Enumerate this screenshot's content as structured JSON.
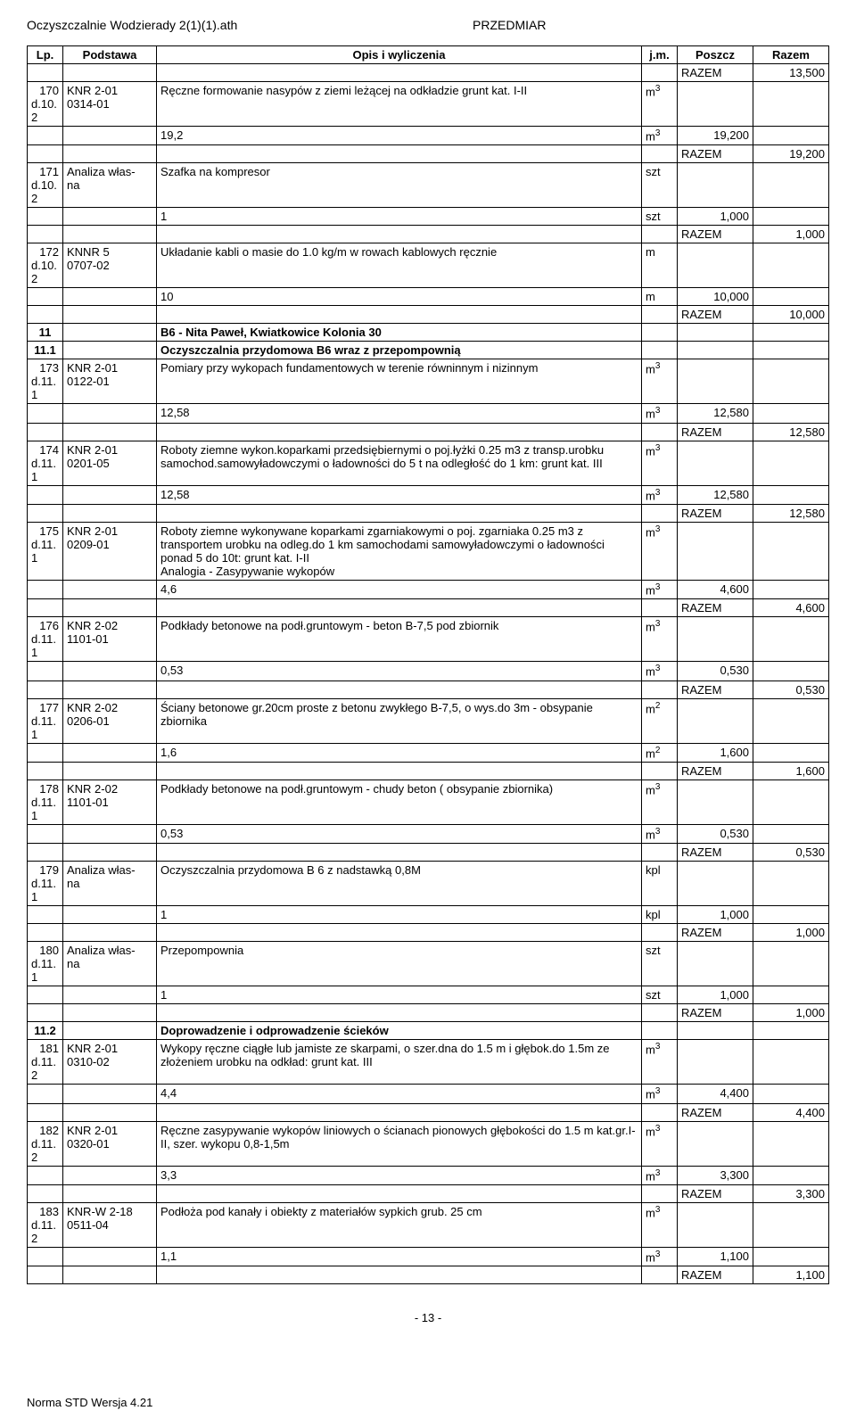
{
  "header": {
    "left": "Oczyszczalnie Wodzierady 2(1)(1).ath",
    "center": "PRZEDMIAR"
  },
  "columns": {
    "lp": "Lp.",
    "base": "Podstawa",
    "desc": "Opis i wyliczenia",
    "jm": "j.m.",
    "poszcz": "Poszcz",
    "razem": "Razem"
  },
  "razem_label": "RAZEM",
  "rows": [
    {
      "type": "razem",
      "value": "13,500"
    },
    {
      "type": "item",
      "lp": "170",
      "dref": "d.10.\n2",
      "base": "KNR 2-01\n0314-01",
      "desc": "Ręczne formowanie nasypów z ziemi leżącej na odkładzie grunt kat. I-II",
      "jm": "m3"
    },
    {
      "type": "calc",
      "desc": "19,2",
      "jm": "m3",
      "poszcz": "19,200"
    },
    {
      "type": "razem",
      "value": "19,200"
    },
    {
      "type": "item",
      "lp": "171",
      "dref": "d.10.\n2",
      "base": "Analiza włas-\nna",
      "desc": "Szafka na kompresor",
      "jm": "szt"
    },
    {
      "type": "calc",
      "desc": "1",
      "jm": "szt",
      "poszcz": "1,000"
    },
    {
      "type": "razem",
      "value": "1,000"
    },
    {
      "type": "item",
      "lp": "172",
      "dref": "d.10.\n2",
      "base": "KNNR 5\n0707-02",
      "desc": "Układanie kabli o masie do 1.0 kg/m w rowach kablowych ręcznie",
      "jm": "m"
    },
    {
      "type": "calc",
      "desc": "10",
      "jm": "m",
      "poszcz": "10,000"
    },
    {
      "type": "razem",
      "value": "10,000"
    },
    {
      "type": "section",
      "lp": "11",
      "desc": "B6 - Nita Paweł, Kwiatkowice Kolonia 30"
    },
    {
      "type": "section",
      "lp": "11.1",
      "desc": "Oczyszczalnia przydomowa B6 wraz z przepompownią"
    },
    {
      "type": "item",
      "lp": "173",
      "dref": "d.11.\n1",
      "base": "KNR 2-01\n0122-01",
      "desc": "Pomiary przy wykopach fundamentowych w terenie równinnym i nizinnym",
      "jm": "m3"
    },
    {
      "type": "calc",
      "desc": "12,58",
      "jm": "m3",
      "poszcz": "12,580"
    },
    {
      "type": "razem",
      "value": "12,580"
    },
    {
      "type": "item",
      "lp": "174",
      "dref": "d.11.\n1",
      "base": "KNR 2-01\n0201-05",
      "desc": "Roboty ziemne wykon.koparkami przedsiębiernymi o poj.łyżki 0.25 m3 z transp.urobku samochod.samowyładowczymi o ładowności do 5 t  na odległość do 1 km: grunt kat. III",
      "jm": "m3"
    },
    {
      "type": "calc",
      "desc": "12,58",
      "jm": "m3",
      "poszcz": "12,580"
    },
    {
      "type": "razem",
      "value": "12,580"
    },
    {
      "type": "item",
      "lp": "175",
      "dref": "d.11.\n1",
      "base": "KNR 2-01\n0209-01",
      "desc": "Roboty ziemne wykonywane koparkami zgarniakowymi o poj. zgarniaka 0.25 m3  z transportem urobku na odleg.do 1 km samochodami samowyładowczymi o ładowności ponad 5 do 10t: grunt kat. I-II\nAnalogia - Zasypywanie wykopów",
      "jm": "m3"
    },
    {
      "type": "calc",
      "desc": "4,6",
      "jm": "m3",
      "poszcz": "4,600"
    },
    {
      "type": "razem",
      "value": "4,600"
    },
    {
      "type": "item",
      "lp": "176",
      "dref": "d.11.\n1",
      "base": "KNR 2-02\n1101-01",
      "desc": "Podkłady betonowe na podł.gruntowym - beton B-7,5 pod zbiornik",
      "jm": "m3"
    },
    {
      "type": "calc",
      "desc": "0,53",
      "jm": "m3",
      "poszcz": "0,530"
    },
    {
      "type": "razem",
      "value": "0,530"
    },
    {
      "type": "item",
      "lp": "177",
      "dref": "d.11.\n1",
      "base": "KNR 2-02\n0206-01",
      "desc": "Ściany betonowe gr.20cm proste z betonu zwykłego B-7,5, o wys.do 3m - obsypanie zbiornika",
      "jm": "m2"
    },
    {
      "type": "calc",
      "desc": "1,6",
      "jm": "m2",
      "poszcz": "1,600"
    },
    {
      "type": "razem",
      "value": "1,600"
    },
    {
      "type": "item",
      "lp": "178",
      "dref": "d.11.\n1",
      "base": "KNR 2-02\n1101-01",
      "desc": "Podkłady betonowe na podł.gruntowym - chudy beton ( obsypanie zbiornika)",
      "jm": "m3"
    },
    {
      "type": "calc",
      "desc": "0,53",
      "jm": "m3",
      "poszcz": "0,530"
    },
    {
      "type": "razem",
      "value": "0,530"
    },
    {
      "type": "item",
      "lp": "179",
      "dref": "d.11.\n1",
      "base": "Analiza włas-\nna",
      "desc": "Oczyszczalnia przydomowa B 6 z nadstawką 0,8M",
      "jm": "kpl"
    },
    {
      "type": "calc",
      "desc": "1",
      "jm": "kpl",
      "poszcz": "1,000"
    },
    {
      "type": "razem",
      "value": "1,000"
    },
    {
      "type": "item",
      "lp": "180",
      "dref": "d.11.\n1",
      "base": "Analiza włas-\nna",
      "desc": "Przepompownia",
      "jm": "szt"
    },
    {
      "type": "calc",
      "desc": "1",
      "jm": "szt",
      "poszcz": "1,000"
    },
    {
      "type": "razem",
      "value": "1,000"
    },
    {
      "type": "section",
      "lp": "11.2",
      "desc": "Doprowadzenie i odprowadzenie ścieków"
    },
    {
      "type": "item",
      "lp": "181",
      "dref": "d.11.\n2",
      "base": "KNR 2-01\n0310-02",
      "desc": "Wykopy ręczne ciągłe lub jamiste ze skarpami, o szer.dna do 1.5 m i głębok.do 1.5m ze złożeniem urobku na odkład: grunt kat. III",
      "jm": "m3"
    },
    {
      "type": "calc",
      "desc": "4,4",
      "jm": "m3",
      "poszcz": "4,400"
    },
    {
      "type": "razem",
      "value": "4,400"
    },
    {
      "type": "item",
      "lp": "182",
      "dref": "d.11.\n2",
      "base": "KNR 2-01\n0320-01",
      "desc": "Ręczne zasypywanie wykopów liniowych o ścianach pionowych głębokości do 1.5 m kat.gr.I-II, szer. wykopu 0,8-1,5m",
      "jm": "m3"
    },
    {
      "type": "calc",
      "desc": "3,3",
      "jm": "m3",
      "poszcz": "3,300"
    },
    {
      "type": "razem",
      "value": "3,300"
    },
    {
      "type": "item",
      "lp": "183",
      "dref": "d.11.\n2",
      "base": "KNR-W 2-18\n0511-04",
      "desc": "Podłoża pod kanały i obiekty z materiałów sypkich grub. 25 cm",
      "jm": "m3"
    },
    {
      "type": "calc",
      "desc": "1,1",
      "jm": "m3",
      "poszcz": "1,100"
    },
    {
      "type": "razem",
      "value": "1,100"
    }
  ],
  "footer": {
    "page": "- 13 -",
    "note": "Norma STD Wersja 4.21"
  }
}
